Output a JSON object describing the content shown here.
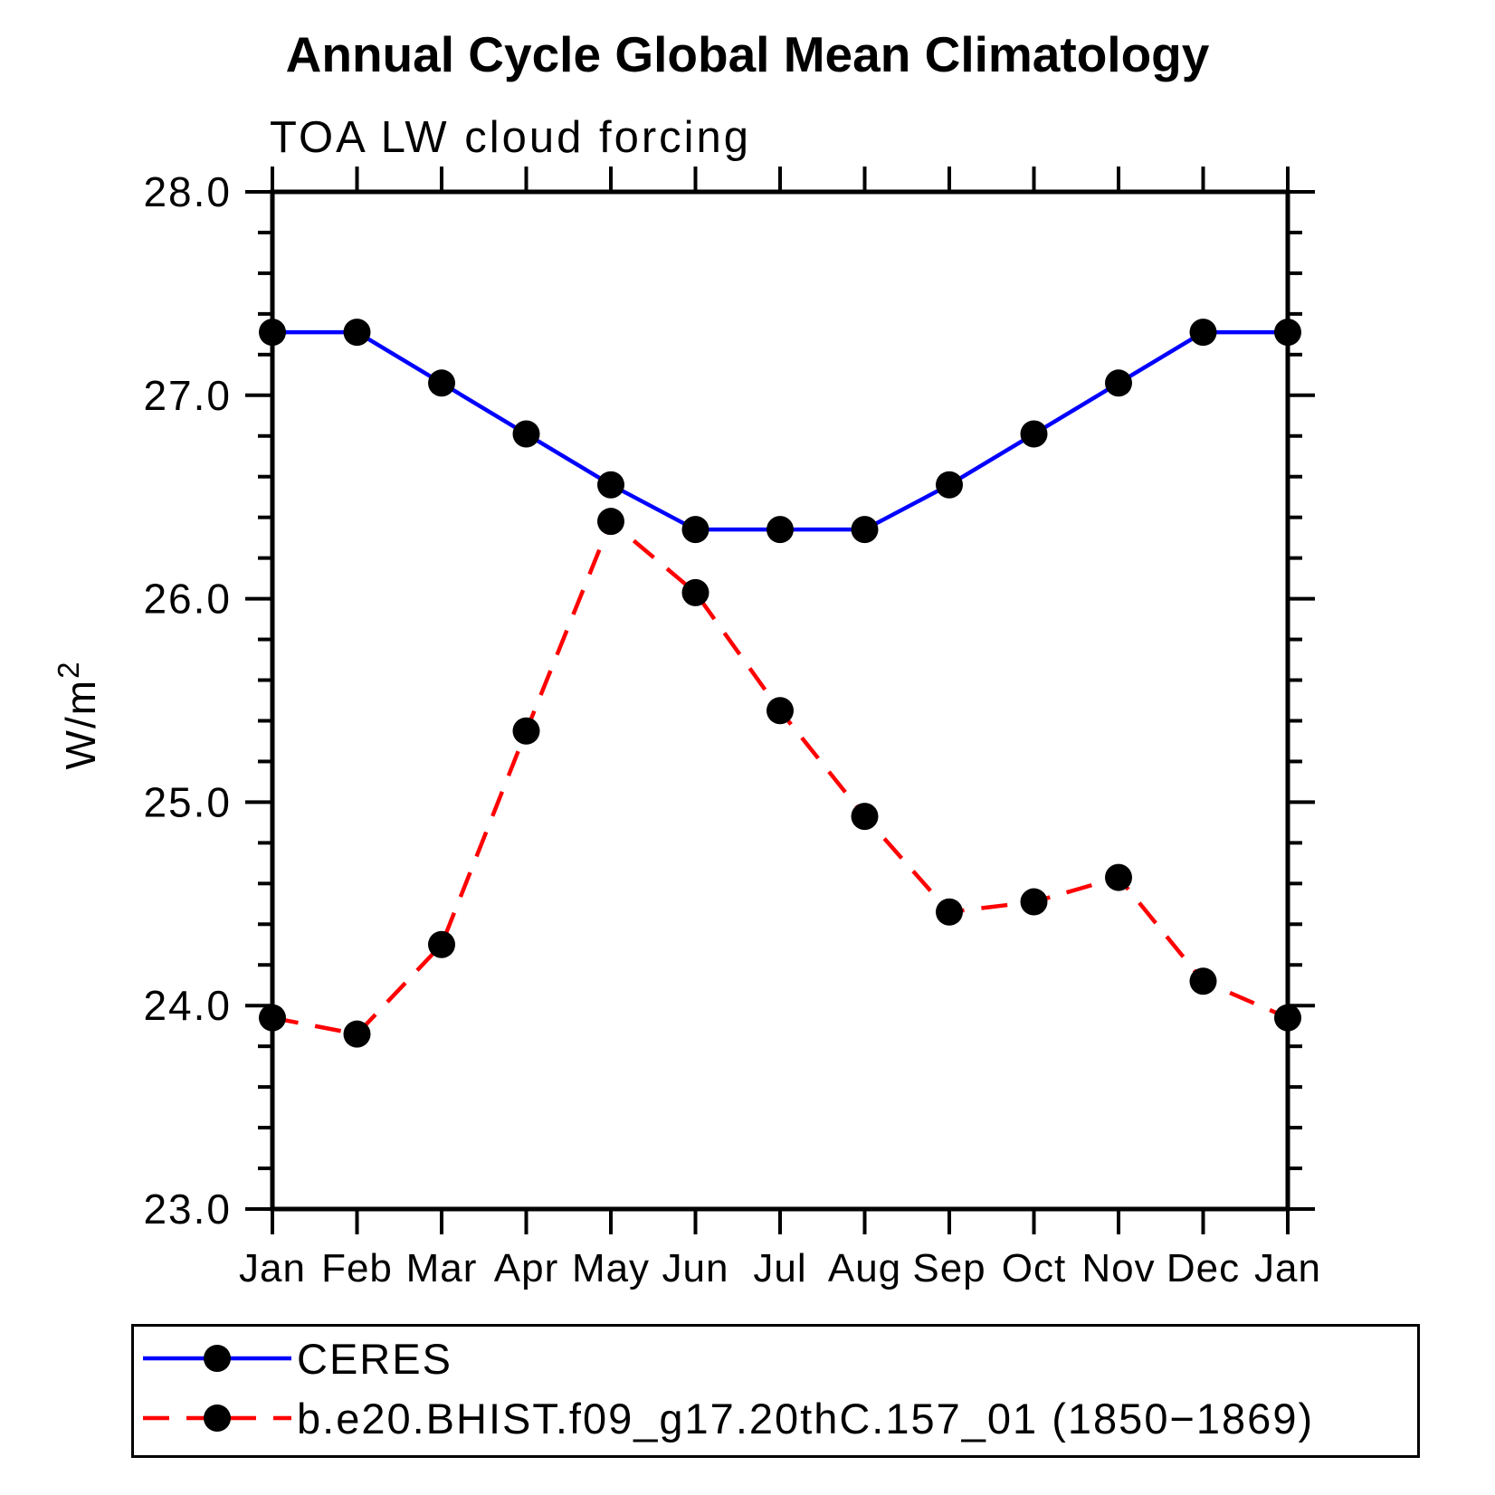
{
  "figure": {
    "title": "Annual Cycle Global Mean Climatology",
    "subtitle": "TOA LW cloud forcing",
    "background_color": "#ffffff",
    "axis_color": "#000000"
  },
  "chart_data": {
    "type": "line",
    "title": "Annual Cycle Global Mean Climatology",
    "subtitle": "TOA LW cloud forcing",
    "xlabel": "",
    "ylabel": "W/m²",
    "ylabel_base": "W/m",
    "ylabel_superscript": "2",
    "categories": [
      "Jan",
      "Feb",
      "Mar",
      "Apr",
      "May",
      "Jun",
      "Jul",
      "Aug",
      "Sep",
      "Oct",
      "Nov",
      "Dec",
      "Jan"
    ],
    "ylim": [
      23.0,
      28.0
    ],
    "y_major_tick_labels": [
      "23.0",
      "24.0",
      "25.0",
      "26.0",
      "27.0",
      "28.0"
    ],
    "y_major_tick_values": [
      23.0,
      24.0,
      25.0,
      26.0,
      27.0,
      28.0
    ],
    "y_minor_tick_step": 0.2,
    "grid": false,
    "legend_position": "bottom",
    "marker": "filled-circle",
    "marker_color": "#000000",
    "series": [
      {
        "name": "CERES",
        "color": "#0000ff",
        "line_style": "solid",
        "values": [
          27.31,
          27.31,
          27.06,
          26.81,
          26.56,
          26.34,
          26.34,
          26.34,
          26.56,
          26.81,
          27.06,
          27.31,
          27.31
        ]
      },
      {
        "name": "b.e20.BHIST.f09_g17.20thC.157_01 (1850−1869)",
        "color": "#ff0000",
        "line_style": "dashed",
        "values": [
          23.94,
          23.86,
          24.3,
          25.35,
          26.38,
          26.03,
          25.45,
          24.93,
          24.46,
          24.51,
          24.63,
          24.12,
          23.94
        ]
      }
    ]
  }
}
